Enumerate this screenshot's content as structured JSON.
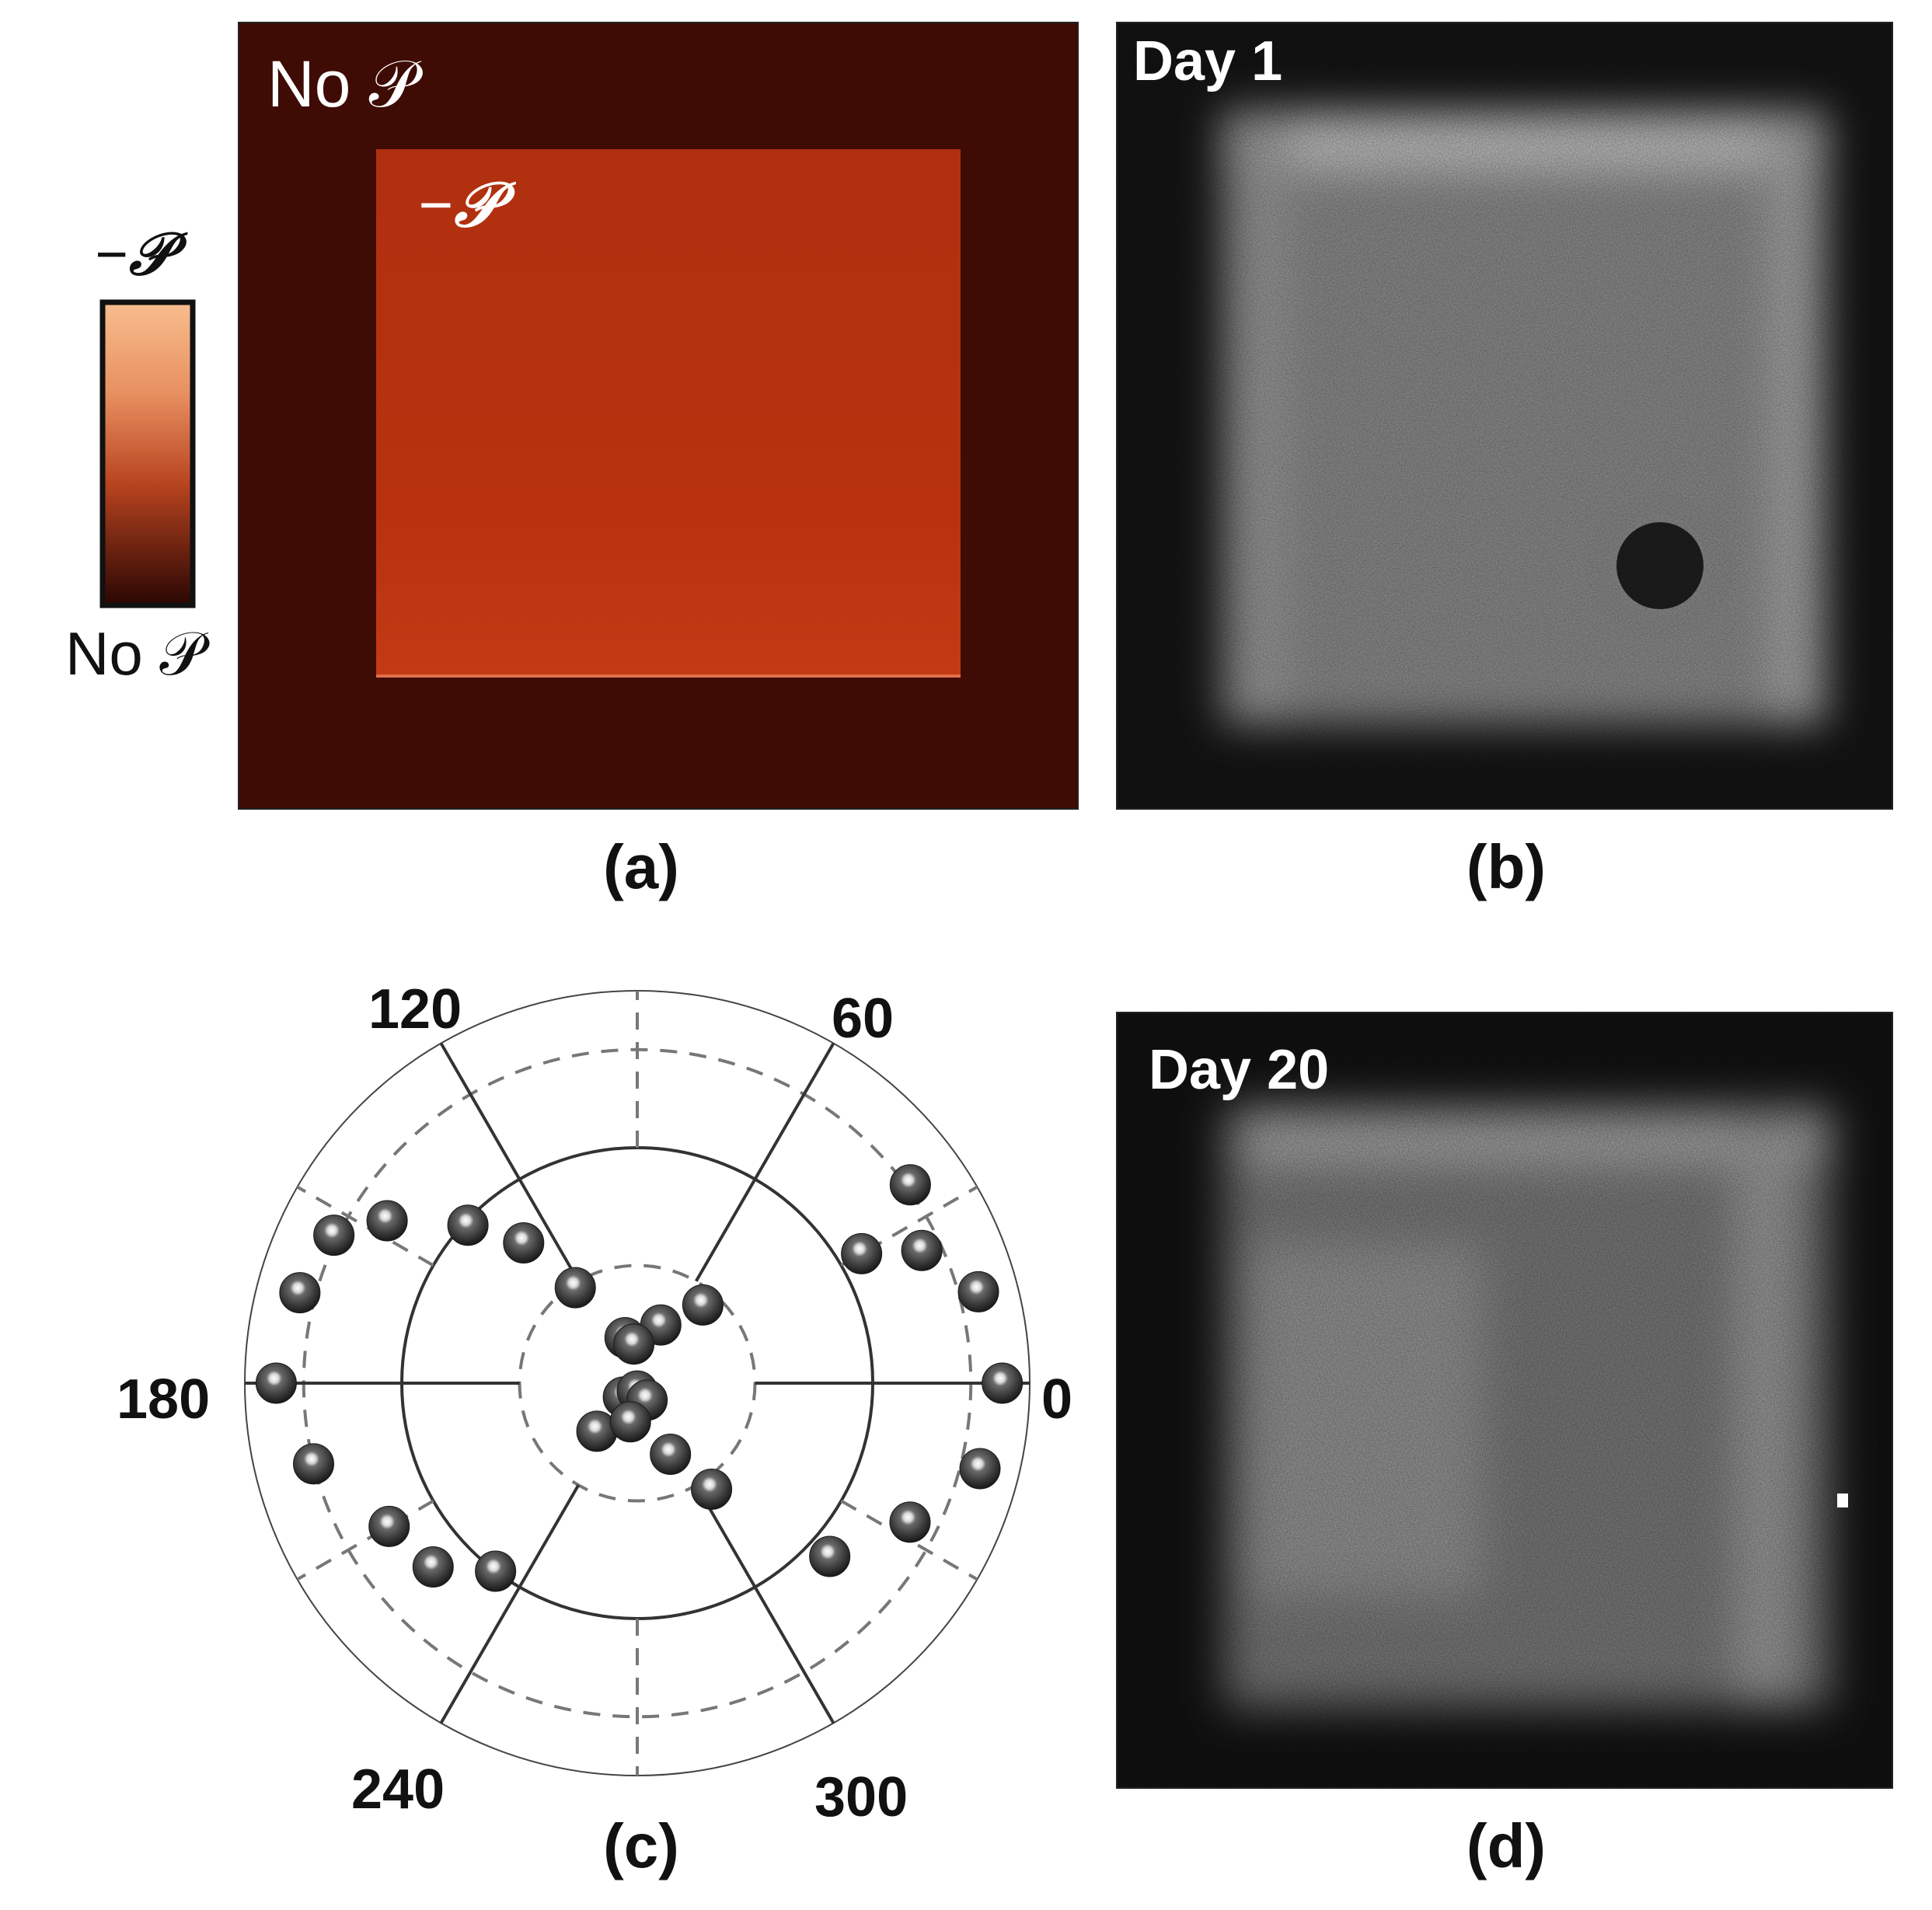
{
  "panel_a": {
    "label": "(a)",
    "outer_label": "No 𝒫",
    "inner_label": "−𝒫",
    "colorbar_top": "−𝒫",
    "colorbar_bottom": "No 𝒫",
    "colors": {
      "background": "#3f0b05",
      "square": "#b8300f",
      "cbar_top": "#f7b98a",
      "cbar_bottom": "#2a0603"
    }
  },
  "panel_b": {
    "label": "(b)",
    "title": "Day 1"
  },
  "panel_c": {
    "label": "(c)"
  },
  "panel_d": {
    "label": "(d)",
    "title": "Day 20"
  },
  "chart_data": {
    "type": "scatter",
    "coordinate_system": "polar",
    "angle_ticks": [
      "0",
      "60",
      "120",
      "180",
      "240",
      "300"
    ],
    "radial_range": [
      0,
      1
    ],
    "radial_rings_solid": [
      0.6,
      1.0
    ],
    "radial_rings_dashed": [
      0.3,
      0.85
    ],
    "points": [
      {
        "theta": 0,
        "r": 0.93
      },
      {
        "theta": 15,
        "r": 0.9
      },
      {
        "theta": 30,
        "r": 0.66
      },
      {
        "theta": 25,
        "r": 0.8
      },
      {
        "theta": 36,
        "r": 0.86
      },
      {
        "theta": 50,
        "r": 0.26
      },
      {
        "theta": 68,
        "r": 0.16
      },
      {
        "theta": 105,
        "r": 0.12
      },
      {
        "theta": 123,
        "r": 0.29
      },
      {
        "theta": 129,
        "r": 0.46
      },
      {
        "theta": 137,
        "r": 0.59
      },
      {
        "theta": 147,
        "r": 0.76
      },
      {
        "theta": 154,
        "r": 0.86
      },
      {
        "theta": 165,
        "r": 0.89
      },
      {
        "theta": 180,
        "r": 0.92
      },
      {
        "theta": 194,
        "r": 0.85
      },
      {
        "theta": 210,
        "r": 0.73
      },
      {
        "theta": 222,
        "r": 0.7
      },
      {
        "theta": 233,
        "r": 0.6
      },
      {
        "theta": 225,
        "r": 0.05
      },
      {
        "theta": 270,
        "r": 0.02
      },
      {
        "theta": 300,
        "r": 0.05
      },
      {
        "theta": 230,
        "r": 0.16
      },
      {
        "theta": 295,
        "r": 0.2
      },
      {
        "theta": 305,
        "r": 0.33
      },
      {
        "theta": 318,
        "r": 0.66
      },
      {
        "theta": 333,
        "r": 0.78
      },
      {
        "theta": 346,
        "r": 0.9
      },
      {
        "theta": 95,
        "r": 0.1
      },
      {
        "theta": 260,
        "r": 0.1
      }
    ]
  }
}
